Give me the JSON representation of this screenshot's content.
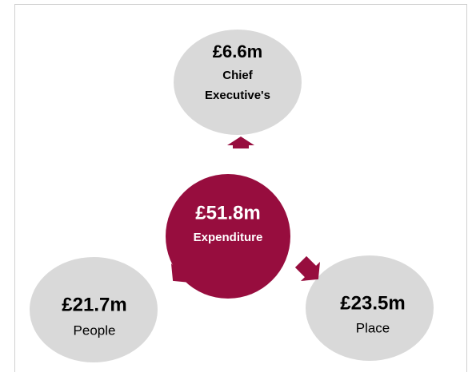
{
  "nodes": [
    {
      "amount": "£51.8m",
      "lines": [
        "Expenditure"
      ]
    },
    {
      "amount": "£6.6m",
      "lines": [
        "Chief",
        "Executive's"
      ]
    },
    {
      "amount": "£21.7m",
      "lines": [
        "People"
      ]
    },
    {
      "amount": "£23.5m",
      "lines": [
        "Place"
      ]
    }
  ]
}
